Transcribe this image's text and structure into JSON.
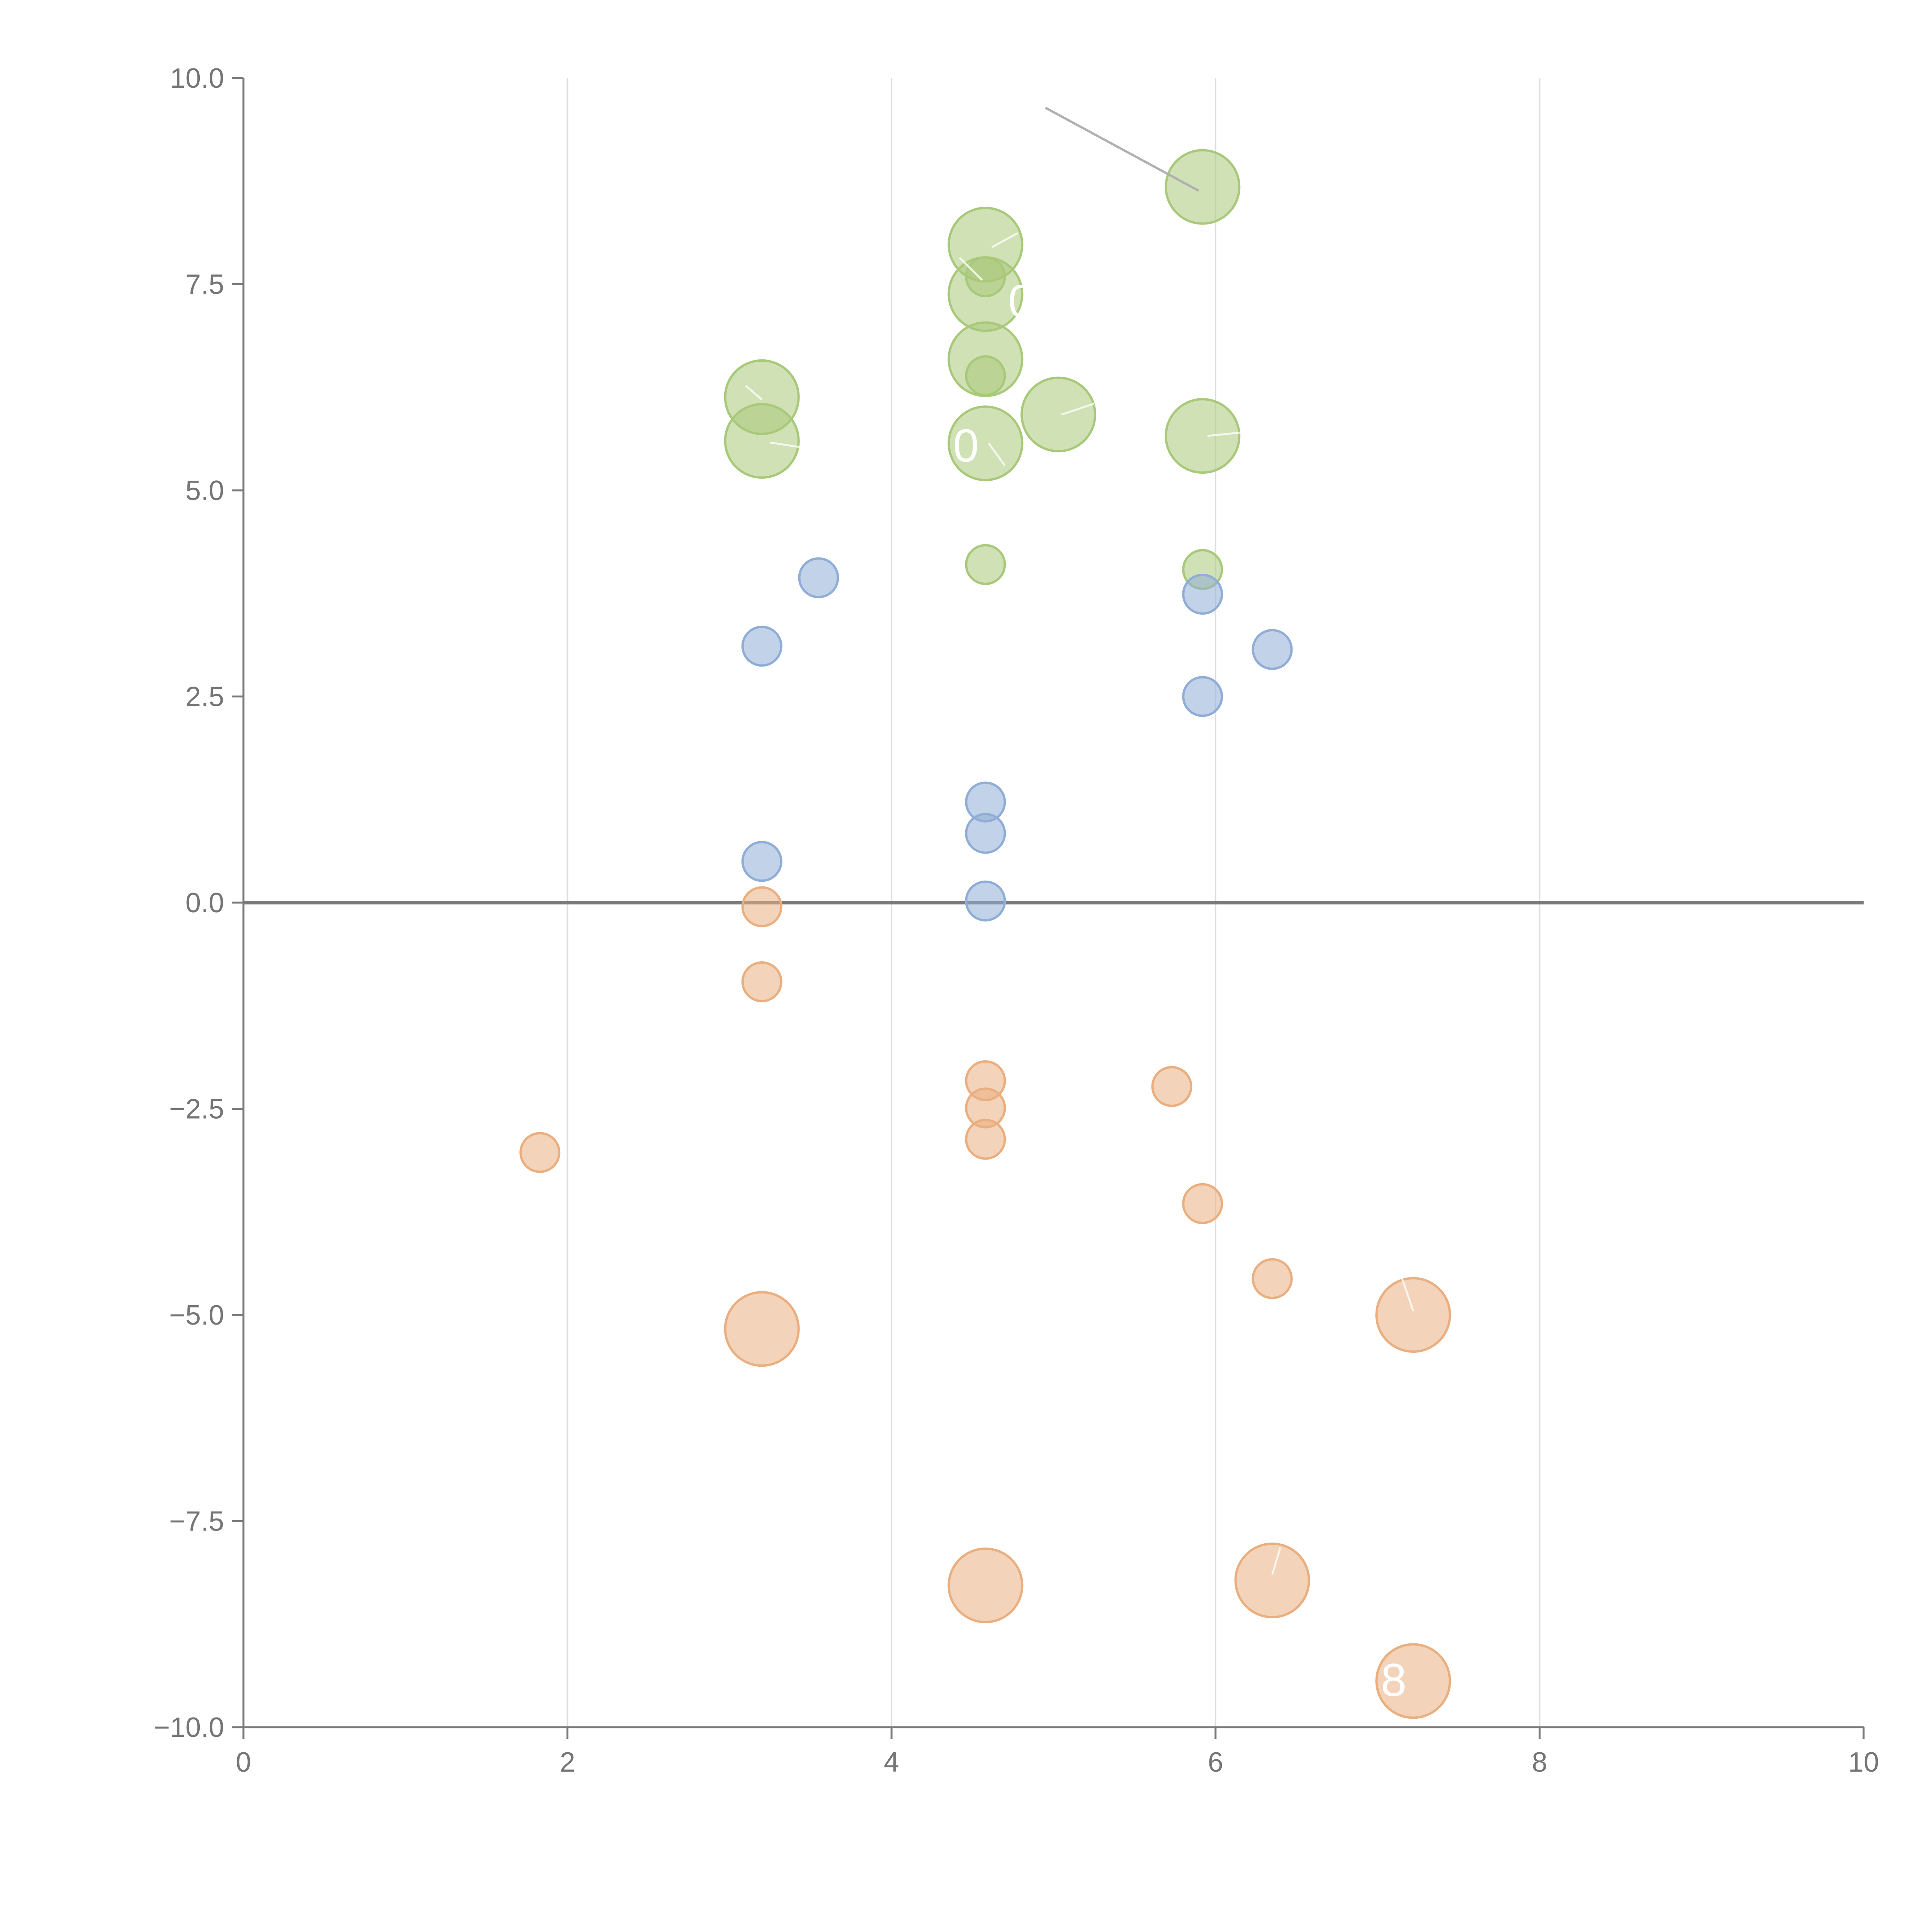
{
  "chart_data": {
    "type": "scatter",
    "title": "",
    "xlabel": "",
    "ylabel": "",
    "xlim": [
      0,
      10
    ],
    "ylim": [
      -10,
      10
    ],
    "x_ticks": [
      0,
      2,
      4,
      6,
      8,
      10
    ],
    "x_tick_labels": [
      "0",
      "2",
      "4",
      "6",
      "8",
      "10"
    ],
    "y_ticks": [
      10,
      7.5,
      5,
      2.5,
      0,
      -2.5,
      -5,
      -7.5,
      -10
    ],
    "y_tick_labels": [
      "10.0",
      "7.5",
      "5.0",
      "2.5",
      "0.0",
      "−2.5",
      "−5.0",
      "−7.5",
      "−10.0"
    ],
    "grid": "vertical",
    "zero_line": true,
    "series": [
      {
        "name": "green",
        "color": "#a9c97a",
        "points": [
          {
            "x": 5.92,
            "y": 8.68,
            "size": 3
          },
          {
            "x": 4.58,
            "y": 7.98,
            "size": 3
          },
          {
            "x": 4.58,
            "y": 7.59,
            "size": 1
          },
          {
            "x": 4.58,
            "y": 7.38,
            "size": 3
          },
          {
            "x": 4.58,
            "y": 6.59,
            "size": 3
          },
          {
            "x": 4.58,
            "y": 6.39,
            "size": 1
          },
          {
            "x": 3.2,
            "y": 6.13,
            "size": 3
          },
          {
            "x": 5.03,
            "y": 5.92,
            "size": 3
          },
          {
            "x": 5.92,
            "y": 5.66,
            "size": 3
          },
          {
            "x": 3.2,
            "y": 5.6,
            "size": 3
          },
          {
            "x": 4.58,
            "y": 5.57,
            "size": 3
          },
          {
            "x": 4.58,
            "y": 4.1,
            "size": 1
          },
          {
            "x": 5.92,
            "y": 4.04,
            "size": 1
          }
        ]
      },
      {
        "name": "blue",
        "color": "#8fadd6",
        "points": [
          {
            "x": 3.55,
            "y": 3.94,
            "size": 1
          },
          {
            "x": 5.92,
            "y": 3.74,
            "size": 1
          },
          {
            "x": 3.2,
            "y": 3.11,
            "size": 1
          },
          {
            "x": 6.35,
            "y": 3.07,
            "size": 1
          },
          {
            "x": 5.92,
            "y": 2.5,
            "size": 1
          },
          {
            "x": 4.58,
            "y": 1.22,
            "size": 1
          },
          {
            "x": 4.58,
            "y": 0.84,
            "size": 1
          },
          {
            "x": 3.2,
            "y": 0.5,
            "size": 1
          },
          {
            "x": 4.58,
            "y": 0.02,
            "size": 1
          }
        ]
      },
      {
        "name": "orange",
        "color": "#eaae7f",
        "points": [
          {
            "x": 3.2,
            "y": -0.05,
            "size": 1
          },
          {
            "x": 3.2,
            "y": -0.96,
            "size": 1
          },
          {
            "x": 4.58,
            "y": -2.16,
            "size": 1
          },
          {
            "x": 5.73,
            "y": -2.23,
            "size": 1
          },
          {
            "x": 4.58,
            "y": -2.49,
            "size": 1
          },
          {
            "x": 4.58,
            "y": -2.87,
            "size": 1
          },
          {
            "x": 1.83,
            "y": -3.03,
            "size": 1
          },
          {
            "x": 5.92,
            "y": -3.65,
            "size": 1
          },
          {
            "x": 6.35,
            "y": -4.56,
            "size": 1
          },
          {
            "x": 7.22,
            "y": -5.0,
            "size": 3
          },
          {
            "x": 3.2,
            "y": -5.17,
            "size": 3
          },
          {
            "x": 6.35,
            "y": -8.22,
            "size": 3
          },
          {
            "x": 4.58,
            "y": -8.28,
            "size": 3
          },
          {
            "x": 7.22,
            "y": -9.44,
            "size": 3
          }
        ]
      }
    ],
    "annotations": [
      {
        "text": "0",
        "x": 4.72,
        "y": 7.1
      },
      {
        "text": "0",
        "x": 4.38,
        "y": 5.35
      },
      {
        "text": "8",
        "x": 7.02,
        "y": -9.62
      }
    ]
  }
}
